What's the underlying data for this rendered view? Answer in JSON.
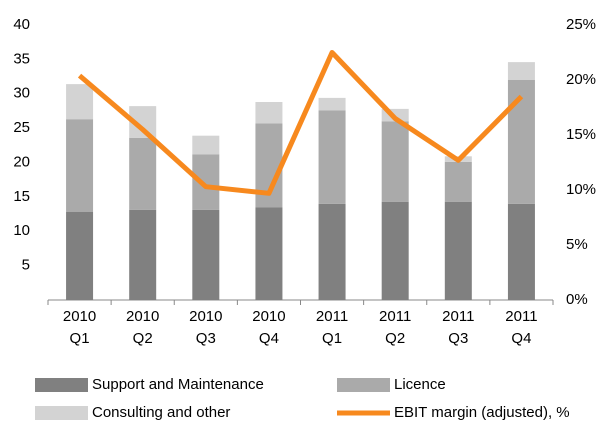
{
  "chart_data": {
    "type": "bar-line",
    "categories": [
      [
        "2010",
        "Q1"
      ],
      [
        "2010",
        "Q2"
      ],
      [
        "2010",
        "Q3"
      ],
      [
        "2010",
        "Q4"
      ],
      [
        "2011",
        "Q1"
      ],
      [
        "2011",
        "Q2"
      ],
      [
        "2011",
        "Q3"
      ],
      [
        "2011",
        "Q4"
      ]
    ],
    "series": [
      {
        "name": "Support and Maintenance",
        "type": "bar",
        "color": "#808080",
        "values": [
          12.8,
          13.1,
          13.1,
          13.5,
          14.0,
          14.3,
          14.3,
          14.0
        ]
      },
      {
        "name": "Licence",
        "type": "bar",
        "color": "#aaaaaa",
        "values": [
          13.5,
          10.5,
          8.1,
          12.2,
          13.6,
          11.7,
          5.8,
          18.0
        ]
      },
      {
        "name": "Consulting and other",
        "type": "bar",
        "color": "#d3d3d3",
        "values": [
          5.1,
          4.6,
          2.7,
          3.1,
          1.8,
          1.8,
          0.8,
          2.6
        ]
      },
      {
        "name": "EBIT margin (adjusted), %",
        "type": "line",
        "axis": "y2",
        "color": "#f7891e",
        "values": [
          20.4,
          15.5,
          10.3,
          9.7,
          22.5,
          16.5,
          12.7,
          18.5
        ]
      }
    ],
    "stacked": true,
    "ylim": [
      0,
      40
    ],
    "yticks": [
      5,
      10,
      15,
      20,
      25,
      30,
      35,
      40
    ],
    "y2lim": [
      0,
      25
    ],
    "y2ticks": [
      {
        "value": 0,
        "label": "0%"
      },
      {
        "value": 5,
        "label": "5%"
      },
      {
        "value": 10,
        "label": "10%"
      },
      {
        "value": 15,
        "label": "15%"
      },
      {
        "value": 20,
        "label": "20%"
      },
      {
        "value": 25,
        "label": "25%"
      }
    ],
    "grid": false
  }
}
